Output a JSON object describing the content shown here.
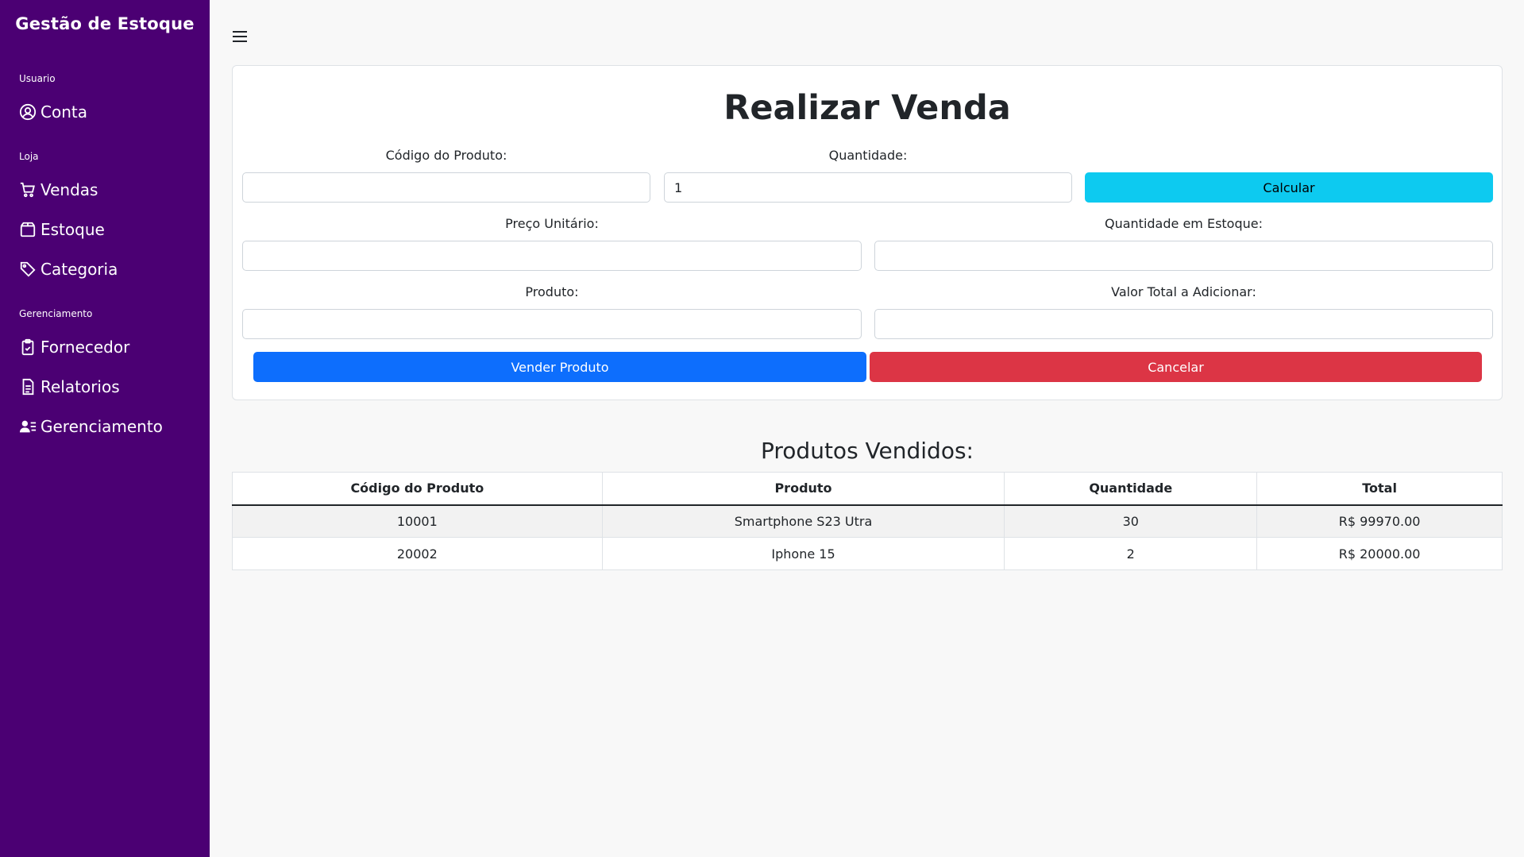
{
  "sidebar": {
    "brand": "Gestão de Estoque",
    "sections": [
      {
        "label": "Usuario",
        "items": [
          {
            "label": "Conta",
            "icon": "user-circle-icon"
          }
        ]
      },
      {
        "label": "Loja",
        "items": [
          {
            "label": "Vendas",
            "icon": "cart-icon"
          },
          {
            "label": "Estoque",
            "icon": "box-icon"
          },
          {
            "label": "Categoria",
            "icon": "tag-icon"
          }
        ]
      },
      {
        "label": "Gerenciamento",
        "items": [
          {
            "label": "Fornecedor",
            "icon": "clipboard-check-icon"
          },
          {
            "label": "Relatorios",
            "icon": "document-icon"
          },
          {
            "label": "Gerenciamento",
            "icon": "user-list-icon"
          }
        ]
      }
    ]
  },
  "form": {
    "title": "Realizar Venda",
    "codigo_label": "Código do Produto:",
    "codigo_value": "",
    "quantidade_label": "Quantidade:",
    "quantidade_value": "1",
    "calcular_label": "Calcular",
    "preco_label": "Preço Unitário:",
    "preco_value": "",
    "estoque_label": "Quantidade em Estoque:",
    "estoque_value": "",
    "produto_label": "Produto:",
    "produto_value": "",
    "valor_total_label": "Valor Total a Adicionar:",
    "valor_total_value": "",
    "vender_label": "Vender Produto",
    "cancelar_label": "Cancelar"
  },
  "sold": {
    "title": "Produtos Vendidos:",
    "columns": [
      "Código do Produto",
      "Produto",
      "Quantidade",
      "Total"
    ],
    "rows": [
      [
        "10001",
        "Smartphone S23 Utra",
        "30",
        "R$ 99970.00"
      ],
      [
        "20002",
        "Iphone 15",
        "2",
        "R$ 20000.00"
      ]
    ]
  },
  "colors": {
    "sidebar": "#4b0073",
    "calcular": "#0dcaf0",
    "vender": "#0d6efd",
    "cancelar": "#dc3545"
  }
}
